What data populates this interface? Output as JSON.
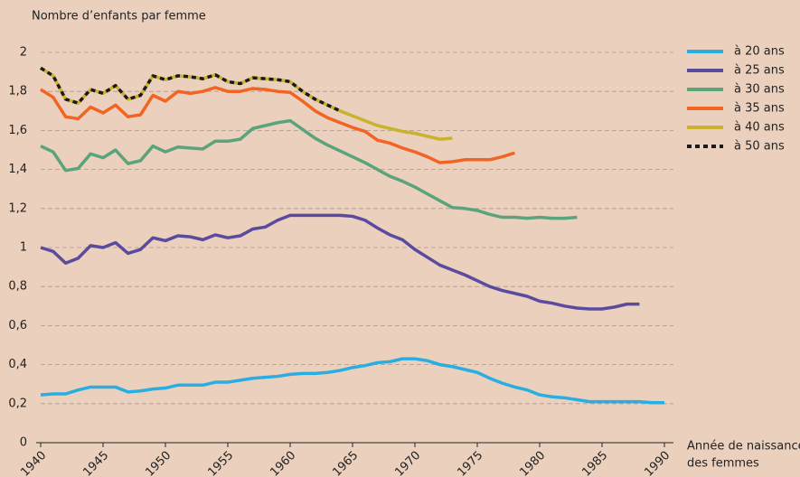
{
  "chart_data": {
    "type": "line",
    "ylabel": "Nombre d’enfants par femme",
    "xlabel": [
      "Année de naissance",
      "des femmes"
    ],
    "xlim": [
      1940,
      1990
    ],
    "xticks": [
      1940,
      1945,
      1950,
      1955,
      1960,
      1965,
      1970,
      1975,
      1980,
      1985,
      1990
    ],
    "ylim": [
      0,
      2
    ],
    "yticks": [
      0,
      {
        "value": 0.2,
        "label": "0,2"
      },
      {
        "value": 0.4,
        "label": "0,4"
      },
      {
        "value": 0.6,
        "label": "0,6"
      },
      {
        "value": 0.8,
        "label": "0,8"
      },
      1,
      {
        "value": 1.2,
        "label": "1,2"
      },
      {
        "value": 1.4,
        "label": "1,4"
      },
      {
        "value": 1.6,
        "label": "1,6"
      },
      {
        "value": 1.8,
        "label": "1,8"
      },
      2
    ],
    "grid": true,
    "legend": "right",
    "x": [
      1940,
      1941,
      1942,
      1943,
      1944,
      1945,
      1946,
      1947,
      1948,
      1949,
      1950,
      1951,
      1952,
      1953,
      1954,
      1955,
      1956,
      1957,
      1958,
      1959,
      1960,
      1961,
      1962,
      1963,
      1964,
      1965,
      1966,
      1967,
      1968,
      1969,
      1970,
      1971,
      1972,
      1973,
      1974,
      1975,
      1976,
      1977,
      1978,
      1979,
      1980,
      1981,
      1982,
      1983,
      1984,
      1985,
      1986,
      1987,
      1988,
      1989,
      1990
    ],
    "series": [
      {
        "name": "à 20 ans",
        "color": "#29aee3",
        "values": [
          0.245,
          0.25,
          0.25,
          0.27,
          0.285,
          0.285,
          0.285,
          0.26,
          0.265,
          0.275,
          0.28,
          0.295,
          0.295,
          0.295,
          0.31,
          0.31,
          0.32,
          0.33,
          0.335,
          0.34,
          0.35,
          0.355,
          0.355,
          0.36,
          0.37,
          0.385,
          0.395,
          0.41,
          0.415,
          0.43,
          0.43,
          0.42,
          0.4,
          0.39,
          0.375,
          0.36,
          0.33,
          0.305,
          0.285,
          0.27,
          0.245,
          0.235,
          0.23,
          0.22,
          0.21,
          0.21,
          0.21,
          0.21,
          0.21,
          0.205,
          0.205
        ]
      },
      {
        "name": "à 25 ans",
        "color": "#5b4b9f",
        "values": [
          1.0,
          0.98,
          0.92,
          0.945,
          1.01,
          1.0,
          1.025,
          0.97,
          0.99,
          1.05,
          1.035,
          1.06,
          1.055,
          1.04,
          1.065,
          1.05,
          1.06,
          1.095,
          1.105,
          1.14,
          1.165,
          1.165,
          1.165,
          1.165,
          1.165,
          1.16,
          1.14,
          1.1,
          1.065,
          1.04,
          0.99,
          0.95,
          0.91,
          0.885,
          0.86,
          0.83,
          0.8,
          0.78,
          0.765,
          0.75,
          0.725,
          0.715,
          0.7,
          0.69,
          0.685,
          0.685,
          0.695,
          0.71,
          0.71,
          null,
          null
        ]
      },
      {
        "name": "à 30 ans",
        "color": "#5ba37b",
        "values": [
          1.52,
          1.49,
          1.395,
          1.405,
          1.48,
          1.46,
          1.5,
          1.43,
          1.445,
          1.52,
          1.49,
          1.515,
          1.51,
          1.505,
          1.545,
          1.545,
          1.555,
          1.61,
          1.625,
          1.64,
          1.65,
          1.605,
          1.56,
          1.525,
          1.495,
          1.465,
          1.435,
          1.4,
          1.365,
          1.34,
          1.31,
          1.275,
          1.24,
          1.205,
          1.2,
          1.19,
          1.17,
          1.155,
          1.155,
          1.15,
          1.155,
          1.15,
          1.15,
          1.155,
          null,
          null,
          null,
          null,
          null,
          null,
          null
        ]
      },
      {
        "name": "à 35 ans",
        "color": "#f26423",
        "values": [
          1.81,
          1.77,
          1.67,
          1.66,
          1.72,
          1.69,
          1.73,
          1.67,
          1.68,
          1.78,
          1.75,
          1.8,
          1.79,
          1.8,
          1.82,
          1.8,
          1.8,
          1.815,
          1.81,
          1.8,
          1.795,
          1.75,
          1.7,
          1.665,
          1.64,
          1.615,
          1.595,
          1.55,
          1.535,
          1.51,
          1.49,
          1.465,
          1.435,
          1.44,
          1.45,
          1.45,
          1.45,
          1.465,
          1.485,
          null,
          null,
          null,
          null,
          null,
          null,
          null,
          null,
          null,
          null,
          null,
          null
        ]
      },
      {
        "name": "à 40 ans",
        "color": "#c8b22e",
        "values": [
          1.92,
          1.88,
          1.76,
          1.74,
          1.81,
          1.79,
          1.83,
          1.76,
          1.78,
          1.88,
          1.86,
          1.88,
          1.875,
          1.865,
          1.885,
          1.85,
          1.84,
          1.87,
          1.865,
          1.86,
          1.85,
          1.8,
          1.76,
          1.73,
          1.7,
          1.675,
          1.65,
          1.625,
          1.61,
          1.595,
          1.585,
          1.57,
          1.555,
          1.56,
          null,
          null,
          null,
          null,
          null,
          null,
          null,
          null,
          null,
          null,
          null,
          null,
          null,
          null,
          null,
          null,
          null
        ]
      },
      {
        "name": "à 50 ans",
        "color": "#1a1a1a",
        "dashed": true,
        "values": [
          1.92,
          1.88,
          1.76,
          1.74,
          1.81,
          1.79,
          1.83,
          1.76,
          1.78,
          1.88,
          1.86,
          1.88,
          1.875,
          1.865,
          1.885,
          1.85,
          1.84,
          1.87,
          1.865,
          1.86,
          1.85,
          1.8,
          1.76,
          1.73,
          1.7,
          null,
          null,
          null,
          null,
          null,
          null,
          null,
          null,
          null,
          null,
          null,
          null,
          null,
          null,
          null,
          null,
          null,
          null,
          null,
          null,
          null,
          null,
          null,
          null,
          null,
          null
        ]
      }
    ]
  }
}
